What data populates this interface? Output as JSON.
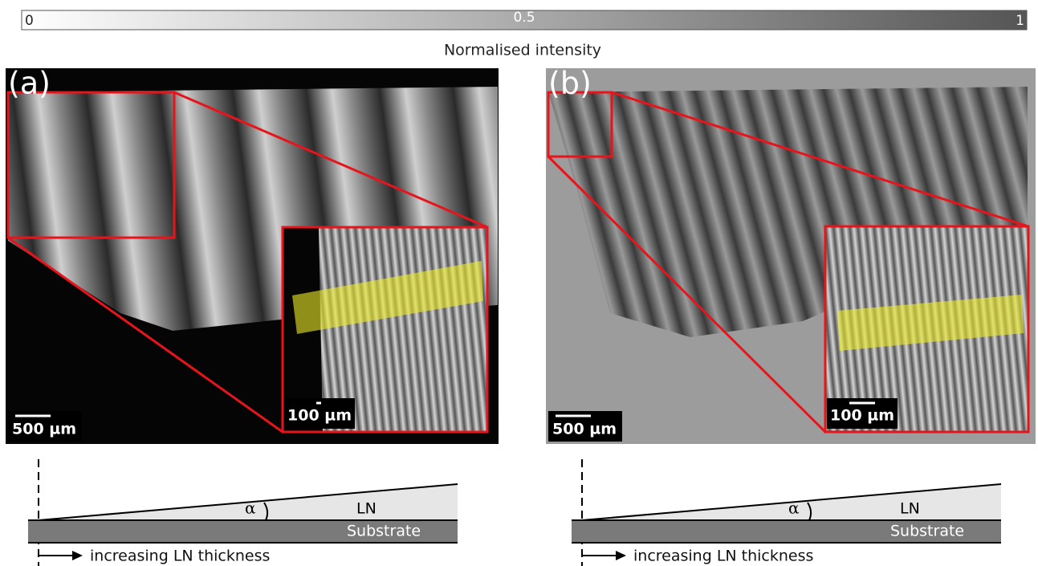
{
  "colorbar": {
    "ticks": [
      "0",
      "0.5",
      "1"
    ],
    "label": "Normalised intensity"
  },
  "panels": [
    {
      "label": "(a)",
      "scale_bar": "500 µm",
      "inset_scale_bar": "100 µm",
      "diagram": {
        "angle": "α",
        "layer": "LN",
        "substrate": "Substrate",
        "arrow": "increasing LN thickness"
      }
    },
    {
      "label": "(b)",
      "scale_bar": "500 µm",
      "inset_scale_bar": "100 µm",
      "diagram": {
        "angle": "α",
        "layer": "LN",
        "substrate": "Substrate",
        "arrow": "increasing LN thickness"
      }
    }
  ]
}
